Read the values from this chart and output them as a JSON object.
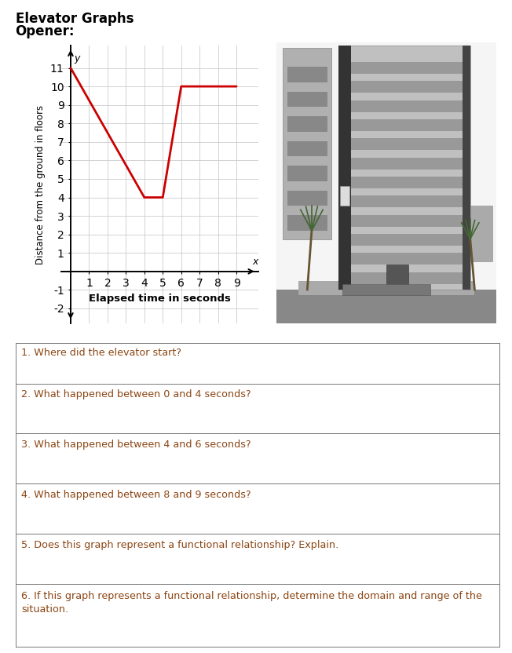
{
  "title": "Elevator Graphs",
  "subtitle": "Opener:",
  "graph_x": [
    0,
    4,
    5,
    6,
    8,
    9
  ],
  "graph_y": [
    11,
    4,
    4,
    10,
    10,
    10
  ],
  "line_color": "#cc0000",
  "line_width": 2.0,
  "xlabel": "Elapsed time in seconds",
  "ylabel": "Distance from the ground in floors",
  "xlim": [
    -0.5,
    10.2
  ],
  "ylim": [
    -2.8,
    12.2
  ],
  "xticks": [
    1,
    2,
    3,
    4,
    5,
    6,
    7,
    8,
    9
  ],
  "yticks": [
    -2,
    -1,
    0,
    1,
    2,
    3,
    4,
    5,
    6,
    7,
    8,
    9,
    10,
    11
  ],
  "questions": [
    "1. Where did the elevator start?",
    "2. What happened between 0 and 4 seconds?",
    "3. What happened between 4 and 6 seconds?",
    "4. What happened between 8 and 9 seconds?",
    "5. Does this graph represent a functional relationship? Explain.",
    "6. If this graph represents a functional relationship, determine the domain and range of the|\nsituation."
  ],
  "question_color": "#8B4513",
  "bg_color": "#ffffff",
  "grid_color": "#cccccc"
}
